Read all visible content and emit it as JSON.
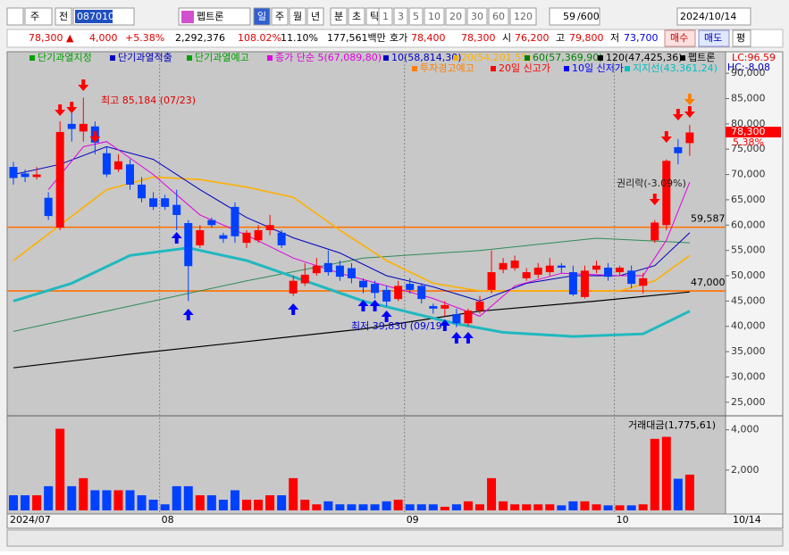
{
  "toolbar": {
    "kind": "주",
    "prev": "전",
    "code": "087010",
    "name": "펩트론",
    "periods": [
      "일",
      "주",
      "월",
      "년",
      "분",
      "초",
      "틱"
    ],
    "intervals": [
      "1",
      "3",
      "5",
      "10",
      "20",
      "30",
      "60",
      "120"
    ],
    "count": "59",
    "max": "/600",
    "date": "2024/10/14"
  },
  "quote": {
    "price": "78,300 ▲",
    "change": "4,000",
    "rate": "+5.38%",
    "volume": "2,292,376",
    "vol_ratio": "108.02%",
    "turnover": "11.10%",
    "amount": "177,561백만",
    "hoga_label": "호가",
    "ask": "78,400",
    "bid": "78,300",
    "open_label": "시",
    "open": "76,200",
    "high_label": "고",
    "high": "79,800",
    "low_label": "저",
    "low": "73,700",
    "buy": "매수",
    "sell": "매도",
    "avg": "평"
  },
  "chart_data": {
    "type": "candlestick",
    "legend_row1": [
      {
        "label": "단기과열지정",
        "color": "#00a000"
      },
      {
        "label": "단기과열적출",
        "color": "#0000c0"
      },
      {
        "label": "단기과열예고",
        "color": "#00a000"
      },
      {
        "label": "종가 단순 5(67,089,80)",
        "color": "#e000e0"
      },
      {
        "label": "10(58,814,30)",
        "color": "#0000c0"
      },
      {
        "label": "20(54,201,55)",
        "color": "#ffb000"
      },
      {
        "label": "60(57,369,90)",
        "color": "#008000"
      },
      {
        "label": "120(47,425,36)",
        "color": "#000000"
      },
      {
        "label": "펩트론",
        "color": "#000000"
      }
    ],
    "legend_row2": [
      {
        "label": "투자경고예고",
        "color": "#ff8000"
      },
      {
        "label": "20일 신고가",
        "color": "#ff0000"
      },
      {
        "label": "10일 신저가",
        "color": "#0000ff"
      },
      {
        "label": "지지선(43,361,24)",
        "color": "#00c0c0"
      }
    ],
    "lc": "LC:96.59",
    "hc": "HC:-8.08",
    "last_price": "78,300",
    "last_rate": "5.38%",
    "ylim": [
      22500,
      93900
    ],
    "yticks": [
      {
        "value": 25000,
        "label": "25,000"
      },
      {
        "value": 30000,
        "label": "30,000"
      },
      {
        "value": 35000,
        "label": "35,000"
      },
      {
        "value": 40000,
        "label": "40,000"
      },
      {
        "value": 45000,
        "label": "45,000"
      },
      {
        "value": 50000,
        "label": "50,000"
      },
      {
        "value": 55000,
        "label": "55,000"
      },
      {
        "value": 60000,
        "label": "60,000"
      },
      {
        "value": 65000,
        "label": "65,000"
      },
      {
        "value": 70000,
        "label": "70,000"
      },
      {
        "value": 75000,
        "label": "75,000"
      },
      {
        "value": 80000,
        "label": "80,000"
      },
      {
        "value": 85000,
        "label": "85,000"
      },
      {
        "value": 90000,
        "label": "90,000"
      }
    ],
    "up_color": "#ff0000",
    "down_color": "#0040ff",
    "candles": [
      {
        "open": 71500,
        "high": 72500,
        "low": 68000,
        "close": 69300
      },
      {
        "open": 70200,
        "high": 71000,
        "low": 68500,
        "close": 69500
      },
      {
        "open": 69500,
        "high": 71500,
        "low": 69000,
        "close": 70000
      },
      {
        "open": 65400,
        "high": 66500,
        "low": 61000,
        "close": 61800
      },
      {
        "open": 59500,
        "high": 80500,
        "low": 59000,
        "close": 78400
      },
      {
        "open": 80000,
        "high": 83000,
        "low": 76500,
        "close": 79000
      },
      {
        "open": 78500,
        "high": 85184,
        "low": 76500,
        "close": 80000
      },
      {
        "open": 79500,
        "high": 80500,
        "low": 74000,
        "close": 76300
      },
      {
        "open": 74200,
        "high": 75500,
        "low": 69500,
        "close": 70000
      },
      {
        "open": 71000,
        "high": 74000,
        "low": 70500,
        "close": 72600
      },
      {
        "open": 72000,
        "high": 73000,
        "low": 67000,
        "close": 68000
      },
      {
        "open": 68000,
        "high": 69500,
        "low": 64500,
        "close": 65300
      },
      {
        "open": 65300,
        "high": 66500,
        "low": 63000,
        "close": 63600
      },
      {
        "open": 65300,
        "high": 66000,
        "low": 63000,
        "close": 63600
      },
      {
        "open": 64000,
        "high": 67000,
        "low": 59000,
        "close": 62000
      },
      {
        "open": 60400,
        "high": 61000,
        "low": 45000,
        "close": 51900
      },
      {
        "open": 56000,
        "high": 60000,
        "low": 55500,
        "close": 59000
      },
      {
        "open": 61000,
        "high": 61500,
        "low": 59500,
        "close": 60000
      },
      {
        "open": 58000,
        "high": 58500,
        "low": 56500,
        "close": 57300
      },
      {
        "open": 63600,
        "high": 64500,
        "low": 56500,
        "close": 57800
      },
      {
        "open": 56500,
        "high": 59000,
        "low": 55500,
        "close": 58500
      },
      {
        "open": 57000,
        "high": 60000,
        "low": 56500,
        "close": 59000
      },
      {
        "open": 59000,
        "high": 62000,
        "low": 58000,
        "close": 60000
      },
      {
        "open": 58500,
        "high": 59000,
        "low": 55500,
        "close": 56000
      },
      {
        "open": 46500,
        "high": 50000,
        "low": 46000,
        "close": 49000
      },
      {
        "open": 48500,
        "high": 52500,
        "low": 48000,
        "close": 50200
      },
      {
        "open": 50500,
        "high": 53500,
        "low": 50000,
        "close": 52000
      },
      {
        "open": 52500,
        "high": 55000,
        "low": 50000,
        "close": 50700
      },
      {
        "open": 52000,
        "high": 53000,
        "low": 49000,
        "close": 49800
      },
      {
        "open": 51500,
        "high": 52500,
        "low": 48500,
        "close": 49500
      },
      {
        "open": 49000,
        "high": 49500,
        "low": 46500,
        "close": 47700
      },
      {
        "open": 48400,
        "high": 49000,
        "low": 45500,
        "close": 46600
      },
      {
        "open": 47200,
        "high": 48000,
        "low": 44000,
        "close": 44900
      },
      {
        "open": 45400,
        "high": 49000,
        "low": 45000,
        "close": 48000
      },
      {
        "open": 48400,
        "high": 49500,
        "low": 46500,
        "close": 47200
      },
      {
        "open": 48000,
        "high": 48500,
        "low": 44500,
        "close": 45400
      },
      {
        "open": 44000,
        "high": 44500,
        "low": 42500,
        "close": 43500
      },
      {
        "open": 43500,
        "high": 45000,
        "low": 42000,
        "close": 44200
      },
      {
        "open": 42400,
        "high": 43500,
        "low": 39830,
        "close": 40600
      },
      {
        "open": 40600,
        "high": 43500,
        "low": 40000,
        "close": 43100
      },
      {
        "open": 43100,
        "high": 46000,
        "low": 42500,
        "close": 44900
      },
      {
        "open": 47200,
        "high": 55000,
        "low": 46500,
        "close": 50700
      },
      {
        "open": 51200,
        "high": 53500,
        "low": 50500,
        "close": 52500
      },
      {
        "open": 51500,
        "high": 54000,
        "low": 51000,
        "close": 53000
      },
      {
        "open": 49500,
        "high": 51500,
        "low": 49000,
        "close": 50700
      },
      {
        "open": 50200,
        "high": 52500,
        "low": 49500,
        "close": 51600
      },
      {
        "open": 50700,
        "high": 53500,
        "low": 50000,
        "close": 52000
      },
      {
        "open": 52000,
        "high": 52500,
        "low": 50500,
        "close": 51600
      },
      {
        "open": 50700,
        "high": 52000,
        "low": 46000,
        "close": 46300
      },
      {
        "open": 45800,
        "high": 52000,
        "low": 45500,
        "close": 51000
      },
      {
        "open": 51200,
        "high": 53000,
        "low": 50500,
        "close": 52000
      },
      {
        "open": 51600,
        "high": 52500,
        "low": 49000,
        "close": 49800
      },
      {
        "open": 50700,
        "high": 52000,
        "low": 50000,
        "close": 51600
      },
      {
        "open": 51000,
        "high": 52000,
        "low": 47500,
        "close": 48400
      },
      {
        "open": 48000,
        "high": 50500,
        "low": 46500,
        "close": 49500
      },
      {
        "open": 57000,
        "high": 61000,
        "low": 56500,
        "close": 60500
      },
      {
        "open": 60000,
        "high": 73000,
        "low": 59000,
        "close": 72700
      },
      {
        "open": 75400,
        "high": 77000,
        "low": 72000,
        "close": 74200
      },
      {
        "open": 76200,
        "high": 79800,
        "low": 73700,
        "close": 78300
      }
    ],
    "lines": [
      {
        "name": "120",
        "color": "#000000",
        "width": 1.2,
        "x": [
          0,
          10,
          20,
          30,
          40,
          50,
          58
        ],
        "values": [
          31800,
          34500,
          37000,
          39500,
          43000,
          45000,
          46800
        ]
      },
      {
        "name": "60",
        "color": "#2e8b57",
        "width": 1,
        "x": [
          0,
          10,
          20,
          30,
          40,
          50,
          58
        ],
        "values": [
          39000,
          44000,
          49000,
          53500,
          55000,
          57400,
          56500
        ]
      },
      {
        "name": "지지선",
        "color": "#20b8c0",
        "width": 3,
        "x": [
          0,
          5,
          10,
          15,
          20,
          25,
          30,
          38,
          42,
          48,
          54,
          58
        ],
        "values": [
          45000,
          48500,
          54000,
          55500,
          53000,
          49000,
          45000,
          40500,
          38800,
          38000,
          38500,
          43000
        ]
      },
      {
        "name": "20",
        "color": "#ffb000",
        "width": 1.6,
        "x": [
          0,
          4,
          8,
          12,
          16,
          20,
          24,
          28,
          32,
          36,
          40,
          46,
          52,
          55,
          58
        ],
        "values": [
          53000,
          60000,
          67000,
          69500,
          69000,
          67500,
          65500,
          59000,
          53000,
          48500,
          47000,
          47000,
          47000,
          49000,
          54000
        ]
      },
      {
        "name": "10",
        "color": "#0000c0",
        "width": 1,
        "x": [
          0,
          4,
          8,
          12,
          16,
          20,
          24,
          28,
          32,
          36,
          40,
          44,
          48,
          52,
          55,
          58
        ],
        "values": [
          70000,
          72000,
          75500,
          73000,
          67000,
          61500,
          57500,
          54500,
          50000,
          47800,
          45000,
          48500,
          50000,
          50000,
          52000,
          58500
        ]
      },
      {
        "name": "5",
        "color": "#e000e0",
        "width": 1,
        "x": [
          3,
          6,
          8,
          12,
          16,
          20,
          24,
          28,
          32,
          36,
          40,
          43,
          47,
          52,
          54,
          56,
          58
        ],
        "values": [
          67000,
          75500,
          76500,
          70000,
          62000,
          58000,
          53500,
          50500,
          48000,
          45500,
          42000,
          48000,
          50500,
          50000,
          50000,
          57000,
          68500
        ]
      }
    ],
    "hlines": [
      {
        "value": 59587,
        "label": "59,587"
      },
      {
        "value": 47000,
        "label": "47,000"
      }
    ],
    "annotations": [
      "최고 85,184 (07/23)",
      "최저 39,830 (09/19)",
      "권리락(-3.09%)"
    ],
    "x_labels": [
      {
        "index": 0,
        "label": "2024/07"
      },
      {
        "index": 13,
        "label": "08"
      },
      {
        "index": 34,
        "label": "09"
      },
      {
        "index": 52,
        "label": "10"
      }
    ],
    "last_date": "10/14",
    "volume": {
      "title": "거래대금(1,775,61)",
      "ylim": [
        0,
        4650
      ],
      "yticks": [
        {
          "value": 2000,
          "label": "2,000"
        },
        {
          "value": 4000,
          "label": "4,000"
        }
      ],
      "values": [
        750,
        750,
        750,
        1200,
        4050,
        1200,
        1600,
        1000,
        1000,
        1000,
        1000,
        750,
        530,
        300,
        1200,
        1200,
        750,
        750,
        530,
        1000,
        530,
        530,
        750,
        750,
        1600,
        530,
        300,
        450,
        300,
        300,
        300,
        300,
        450,
        530,
        300,
        300,
        300,
        180,
        300,
        450,
        300,
        1600,
        450,
        300,
        300,
        300,
        300,
        250,
        450,
        450,
        300,
        250,
        250,
        250,
        300,
        3550,
        3650,
        1570,
        1775.61
      ]
    }
  }
}
